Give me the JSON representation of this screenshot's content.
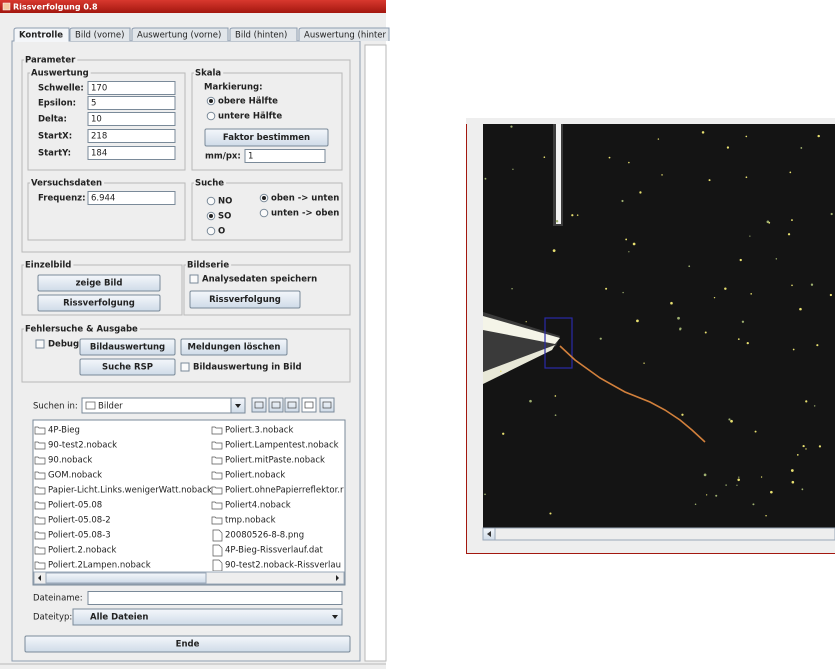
{
  "window": {
    "title": "Rissverfolgung 0.8"
  },
  "tabs": [
    "Kontrolle",
    "Bild (vorne)",
    "Auswertung (vorne)",
    "Bild (hinten)",
    "Auswertung (hinter"
  ],
  "parameter": {
    "title": "Parameter",
    "auswertung": {
      "title": "Auswertung",
      "fields": [
        {
          "label": "Schwelle:",
          "value": 170
        },
        {
          "label": "Epsilon:",
          "value": 5
        },
        {
          "label": "Delta:",
          "value": 10
        },
        {
          "label": "StartX:",
          "value": 218
        },
        {
          "label": "StartY:",
          "value": 184
        }
      ]
    },
    "skala": {
      "title": "Skala",
      "markierung": "Markierung:",
      "options": [
        "obere Hälfte",
        "untere Hälfte"
      ],
      "button": "Faktor bestimmen",
      "mm_px": {
        "label": "mm/px:",
        "value": 1
      }
    },
    "versuchsdaten": {
      "title": "Versuchsdaten",
      "frequenz": {
        "label": "Frequenz:",
        "value": 6.944
      }
    },
    "suche": {
      "title": "Suche",
      "directions": [
        "NO",
        "SO",
        "O"
      ],
      "order": [
        "oben -> unten",
        "unten -> oben"
      ]
    }
  },
  "einzelbild": {
    "title": "Einzelbild",
    "buttons": [
      "zeige Bild",
      "Rissverfolgung"
    ]
  },
  "bildserie": {
    "title": "Bildserie",
    "checkbox": "Analysedaten speichern",
    "button": "Rissverfolgung"
  },
  "fehlersuche": {
    "title": "Fehlersuche & Ausgabe",
    "debug": "Debug",
    "buttons": [
      "Bildauswertung",
      "Meldungen löschen",
      "Suche RSP"
    ],
    "checkbox": "Bildauswertung in Bild"
  },
  "file_chooser": {
    "look_in": "Suchen in:",
    "folder": "Bilder",
    "folders": [
      "4P-Bieg",
      "90-test2.noback",
      "90.noback",
      "GOM.noback",
      "Papier-Licht.Links.wenigerWatt.noback",
      "Poliert-05.08",
      "Poliert-05.08-2",
      "Poliert-05.08-3",
      "Poliert.2.noback",
      "Poliert.2Lampen.noback",
      "Poliert.3.noback",
      "Poliert.Lampentest.noback",
      "Poliert.mitPaste.noback",
      "Poliert.noback",
      "Poliert.ohnePapierreflektor.r",
      "Poliert4.noback",
      "tmp.noback"
    ],
    "files": [
      "20080526-8-8.png",
      "4P-Bieg-Rissverlauf.dat",
      "90-test2.noback-Rissverlau"
    ],
    "filename_label": "Dateiname:",
    "filetype_label": "Dateityp:",
    "filetype": "Alle Dateien"
  },
  "end_button": "Ende"
}
